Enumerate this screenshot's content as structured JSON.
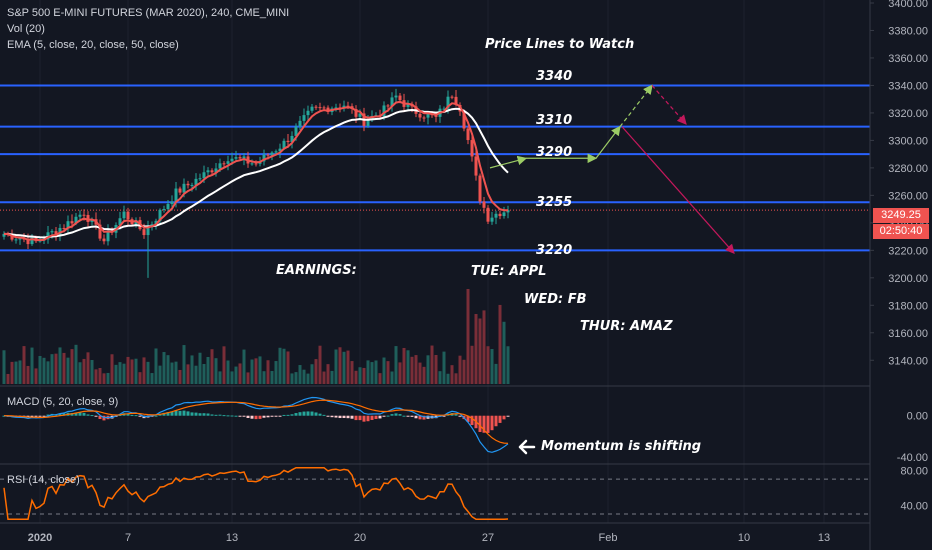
{
  "header": {
    "title": "S&P 500 E-MINI FUTURES (MAR 2020), 240, CME_MINI",
    "vol": "Vol (20)",
    "ema": "EMA (5, close, 20, close, 50, close)"
  },
  "annotations": {
    "heading": "Price Lines to Watch",
    "earnings": "EARNINGS:",
    "tue": "TUE: APPL",
    "wed": "WED: FB",
    "thur": "THUR: AMAZ",
    "momentum": "Momentum is shifting"
  },
  "tags": {
    "price": "3249.25",
    "countdown": "02:50:40",
    "price_color": "#ef5350",
    "countdown_color": "#ef5350"
  },
  "indicators": {
    "macd": "MACD (5, 20, close, 9)",
    "rsi": "RSI (14, close)"
  },
  "colors": {
    "background": "#131722",
    "level_line": "#2962ff",
    "ema_fast": "#ef5350",
    "ema_slow": "#ffffff",
    "up": "#26a69a",
    "down": "#ef5350",
    "macd_line": "#2196f3",
    "signal_line": "#ff6d00",
    "rsi_line": "#ff6d00",
    "arrow_bull": "#9ccc65",
    "arrow_bear": "#c2185b"
  },
  "chart_data": [
    {
      "type": "candlestick",
      "price_axis": {
        "ticks": [
          "3400.00",
          "3380.00",
          "3360.00",
          "3340.00",
          "3320.00",
          "3300.00",
          "3280.00",
          "3260.00",
          "3240.00",
          "3220.00",
          "3200.00",
          "3180.00",
          "3160.00",
          "3140.00"
        ],
        "range": [
          3130,
          3400
        ]
      },
      "time_axis": {
        "ticks": [
          "2020",
          "7",
          "13",
          "20",
          "27",
          "Feb",
          "10",
          "13"
        ]
      },
      "levels": [
        {
          "value": 3340,
          "label": "3340"
        },
        {
          "value": 3310,
          "label": "3310"
        },
        {
          "value": 3290,
          "label": "3290"
        },
        {
          "value": 3255,
          "label": "3255"
        },
        {
          "value": 3220,
          "label": "3220"
        }
      ],
      "last_price": 3249.25,
      "anchors": [
        {
          "bar": 0,
          "price": 3232
        },
        {
          "bar": 8,
          "price": 3226
        },
        {
          "bar": 15,
          "price": 3238
        },
        {
          "bar": 20,
          "price": 3248
        },
        {
          "bar": 25,
          "price": 3227
        },
        {
          "bar": 30,
          "price": 3247
        },
        {
          "bar": 35,
          "price": 3233
        },
        {
          "bar": 43,
          "price": 3262
        },
        {
          "bar": 50,
          "price": 3275
        },
        {
          "bar": 56,
          "price": 3288
        },
        {
          "bar": 63,
          "price": 3283
        },
        {
          "bar": 70,
          "price": 3298
        },
        {
          "bar": 77,
          "price": 3322
        },
        {
          "bar": 85,
          "price": 3326
        },
        {
          "bar": 90,
          "price": 3314
        },
        {
          "bar": 95,
          "price": 3322
        },
        {
          "bar": 98,
          "price": 3332
        },
        {
          "bar": 102,
          "price": 3322
        },
        {
          "bar": 108,
          "price": 3316
        },
        {
          "bar": 112,
          "price": 3334
        },
        {
          "bar": 114,
          "price": 3324
        },
        {
          "bar": 116,
          "price": 3300
        },
        {
          "bar": 119,
          "price": 3258
        },
        {
          "bar": 121,
          "price": 3244
        },
        {
          "bar": 124,
          "price": 3248
        },
        {
          "bar": 126,
          "price": 3249.25
        }
      ],
      "projection": [
        {
          "type": "bull",
          "from": [
            3271,
            3280
          ],
          "to": [
            3283,
            3287
          ]
        },
        {
          "type": "bull",
          "from": [
            3283,
            3287
          ],
          "to": [
            3292,
            3287
          ]
        },
        {
          "type": "bull",
          "from": [
            3292,
            3287
          ],
          "to": [
            3300,
            3310
          ]
        },
        {
          "type": "bull",
          "from": [
            3300,
            3310
          ],
          "to": [
            3313,
            3340
          ]
        },
        {
          "type": "bear",
          "from": [
            3313,
            3340
          ],
          "to": [
            3322,
            3312
          ]
        },
        {
          "type": "bear",
          "from": [
            3301,
            3310
          ],
          "to": [
            3320,
            3218
          ]
        }
      ]
    },
    {
      "type": "macd",
      "ticks": [
        "0.00",
        "-40.00"
      ],
      "range": [
        -45,
        25
      ]
    },
    {
      "type": "rsi",
      "ticks": [
        "80.00",
        "40.00"
      ],
      "range": [
        22,
        85
      ],
      "bands": [
        70,
        30
      ]
    }
  ]
}
